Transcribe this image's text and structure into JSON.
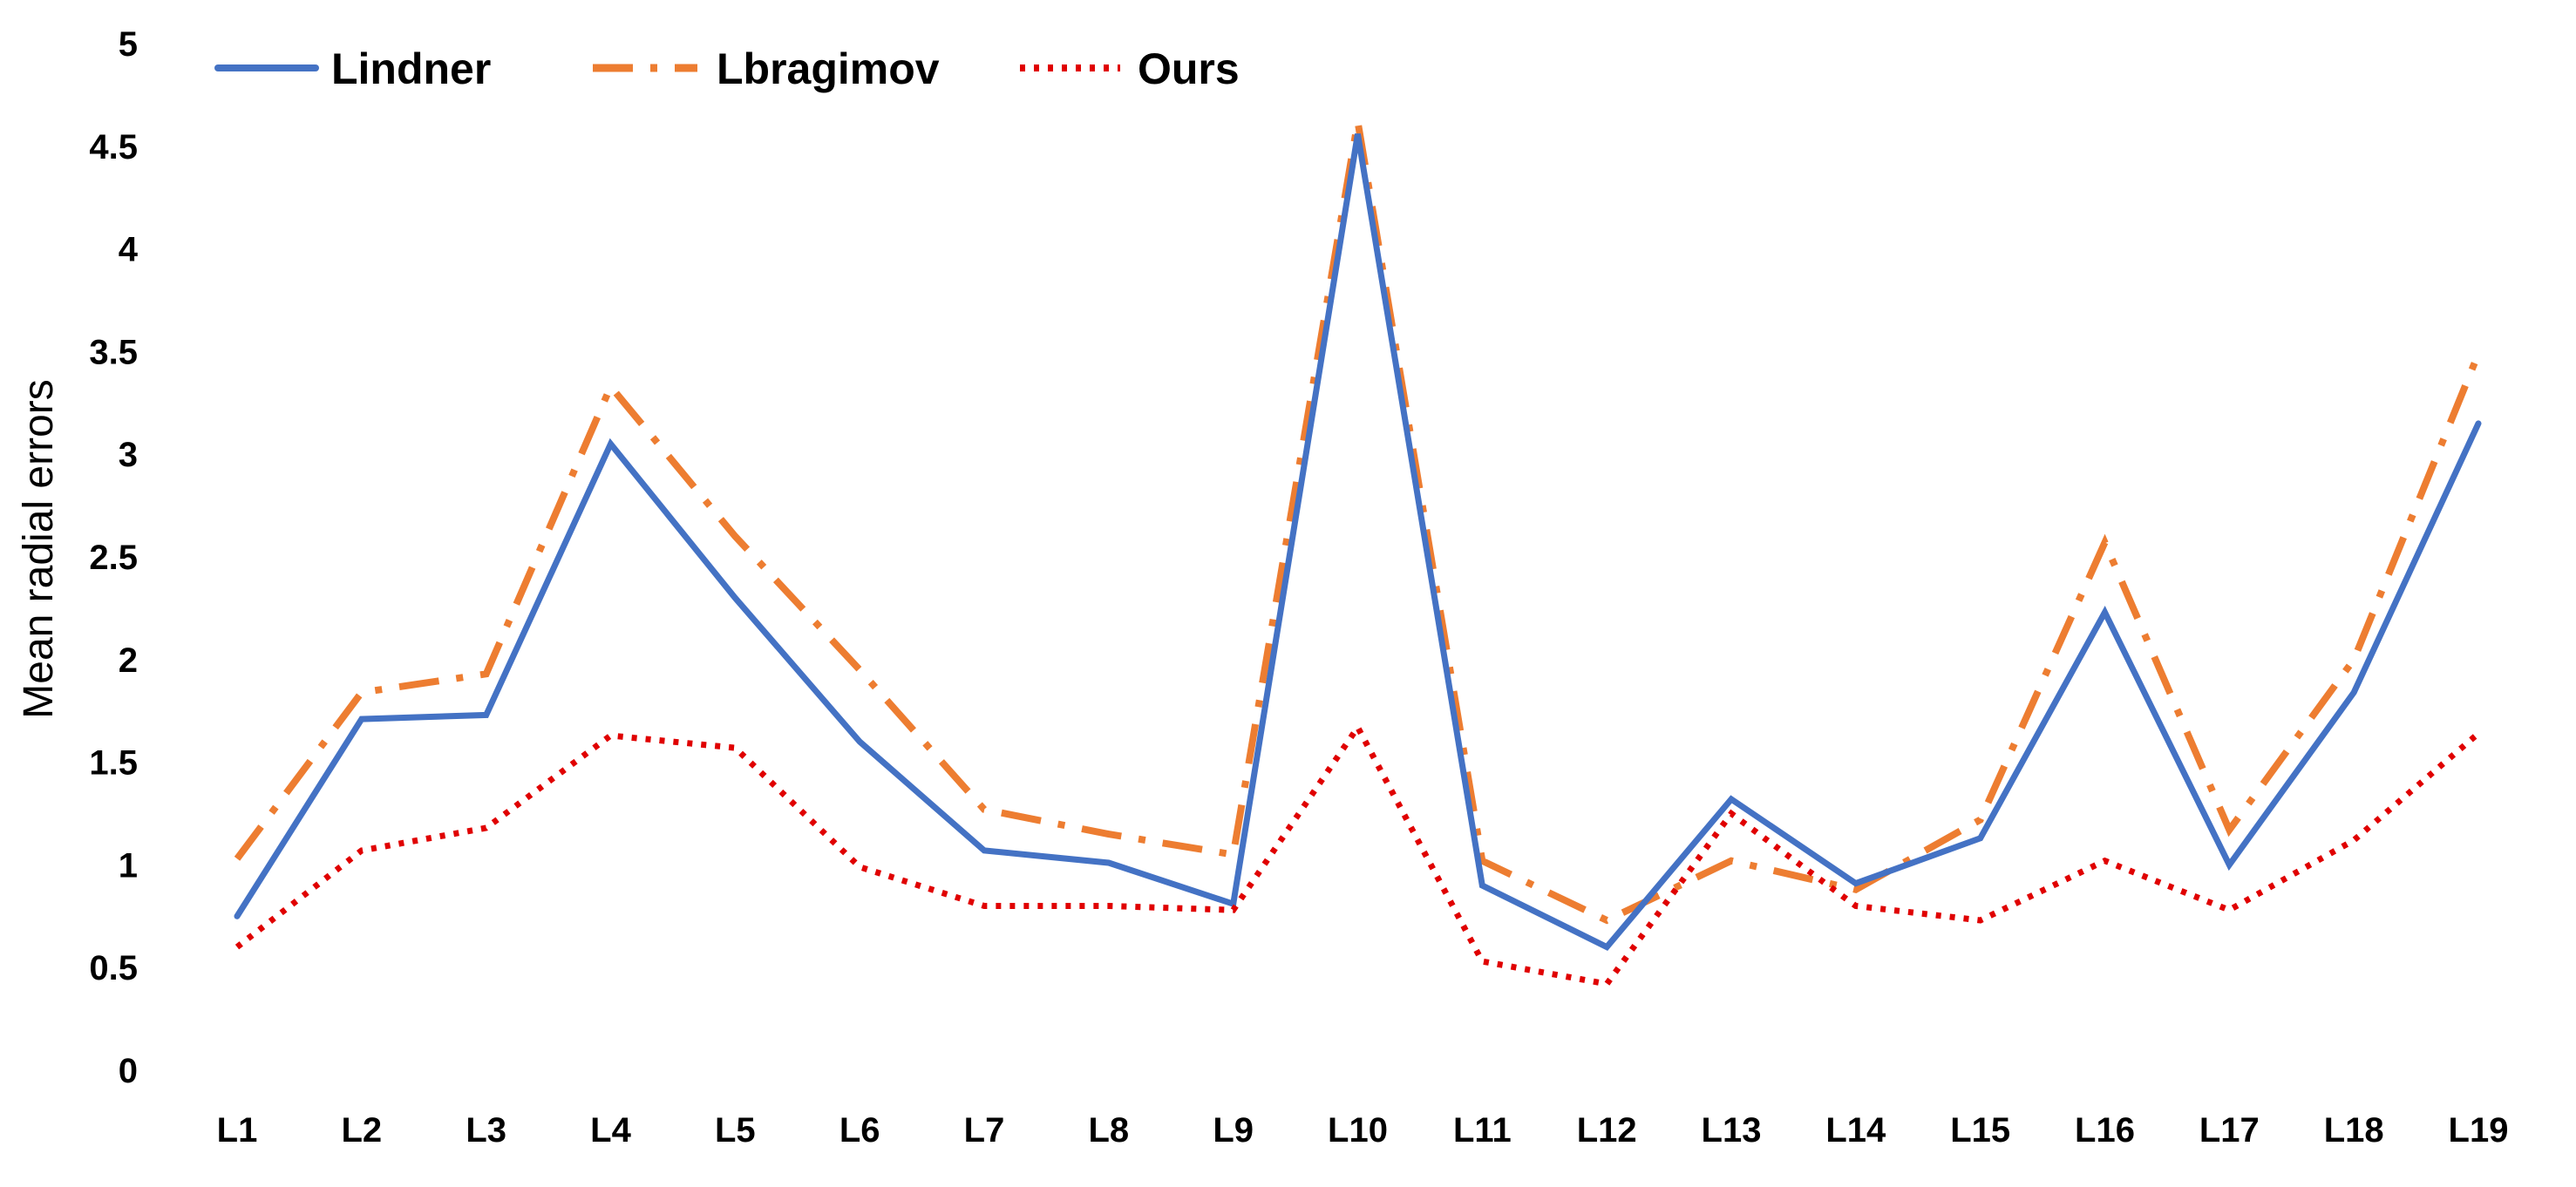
{
  "chart_data": {
    "type": "line",
    "title": "",
    "xlabel": "",
    "ylabel": "Mean radial errors",
    "ylim": [
      0,
      5
    ],
    "yticks": [
      "0",
      "0.5",
      "1",
      "1.5",
      "2",
      "2.5",
      "3",
      "3.5",
      "4",
      "4.5",
      "5"
    ],
    "grid": false,
    "legend_position": "top-left",
    "categories": [
      "L1",
      "L2",
      "L3",
      "L4",
      "L5",
      "L6",
      "L7",
      "L8",
      "L9",
      "L10",
      "L11",
      "L12",
      "L13",
      "L14",
      "L15",
      "L16",
      "L17",
      "L18",
      "L19"
    ],
    "series": [
      {
        "name": "Lindner",
        "color": "#4472C4",
        "line_style": "solid",
        "values": [
          0.75,
          1.71,
          1.73,
          3.05,
          2.3,
          1.6,
          1.07,
          1.01,
          0.81,
          4.56,
          0.9,
          0.6,
          1.32,
          0.91,
          1.13,
          2.23,
          1.0,
          1.84,
          3.15
        ]
      },
      {
        "name": "Lbragimov",
        "color": "#ED7D31",
        "line_style": "dash-dot",
        "values": [
          1.03,
          1.84,
          1.93,
          3.33,
          2.6,
          1.95,
          1.27,
          1.15,
          1.05,
          4.62,
          1.02,
          0.73,
          1.02,
          0.88,
          1.22,
          2.57,
          1.17,
          2.0,
          3.49
        ]
      },
      {
        "name": "Ours",
        "color": "#E00000",
        "line_style": "dotted",
        "values": [
          0.6,
          1.07,
          1.18,
          1.63,
          1.57,
          0.99,
          0.8,
          0.8,
          0.78,
          1.67,
          0.53,
          0.42,
          1.25,
          0.8,
          0.73,
          1.02,
          0.78,
          1.12,
          1.64
        ]
      }
    ]
  }
}
